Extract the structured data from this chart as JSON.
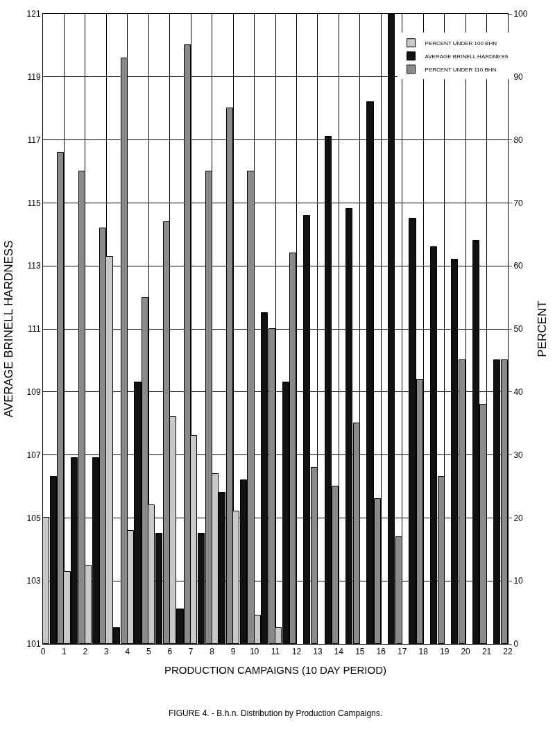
{
  "chart_data": {
    "type": "bar",
    "annotations": [
      "FIGURE 4. - B.h.n. Distribution by Production Campaigns."
    ],
    "xlabel": "PRODUCTION CAMPAIGNS (10 DAY PERIOD)",
    "ylabel": "AVERAGE BRINELL HARDNESS",
    "y2label": "PERCENT",
    "x": [
      0.5,
      1.5,
      2.5,
      3.5,
      4.5,
      5.5,
      6.5,
      7.5,
      8.5,
      9.5,
      10.5,
      11.5,
      12.5,
      13.5,
      14.5,
      15.5,
      16.5,
      17.5,
      18.5,
      19.5,
      20.5,
      21.5
    ],
    "series": [
      {
        "name": "PERCENT UNDER 100 BHN",
        "color": "#c8c8c8",
        "axis": "y2",
        "values": [
          20,
          11.5,
          12.5,
          61.5,
          18,
          22,
          36,
          33,
          27,
          21,
          4.5,
          2.5,
          null,
          null,
          null,
          null,
          null,
          null,
          null,
          null,
          null,
          null
        ]
      },
      {
        "name": "AVERAGE BRINELL HARDNESS",
        "color": "#111111",
        "values": [
          106.3,
          106.9,
          106.9,
          101.5,
          109.3,
          104.5,
          102.1,
          104.5,
          105.8,
          106.2,
          111.5,
          109.3,
          114.6,
          117.1,
          114.8,
          118.2,
          121,
          114.5,
          113.6,
          113.2,
          113.8,
          110.0
        ]
      },
      {
        "name": "PERCENT UNDER 110 BHN",
        "color": "#8a8a8a",
        "axis": "y2",
        "values": [
          78,
          75,
          66,
          93,
          55,
          67,
          95,
          75,
          85,
          75,
          50,
          62,
          28,
          25,
          35,
          23,
          17,
          42,
          26.5,
          45,
          38,
          45
        ]
      }
    ],
    "xlim": [
      0,
      22
    ],
    "xticks": [
      0,
      1,
      2,
      3,
      4,
      5,
      6,
      7,
      8,
      9,
      10,
      11,
      12,
      13,
      14,
      15,
      16,
      17,
      18,
      19,
      20,
      21,
      22
    ],
    "ylim": [
      101,
      121
    ],
    "yticks": [
      101,
      103,
      105,
      107,
      109,
      111,
      113,
      115,
      117,
      119,
      121
    ],
    "y2lim": [
      0,
      100
    ],
    "y2ticks": [
      0,
      10,
      20,
      30,
      40,
      50,
      60,
      70,
      80,
      90,
      100
    ],
    "grid": true,
    "legend": "top right"
  }
}
